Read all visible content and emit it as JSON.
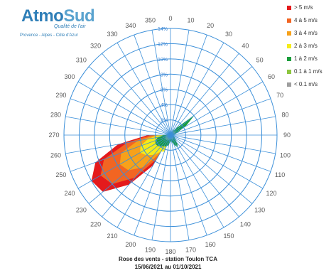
{
  "logo": {
    "brand_part1": "Atmo",
    "brand_part2": "Sud",
    "tagline": "Qualité de l'air",
    "region": "Provence - Alpes - Côte d'Azur"
  },
  "legend": [
    {
      "label": "> 5 m/s",
      "color": "#e41a1c"
    },
    {
      "label": "4 à 5 m/s",
      "color": "#f26522"
    },
    {
      "label": "3 à 4 m/s",
      "color": "#f7a11a"
    },
    {
      "label": "2 à 3 m/s",
      "color": "#f5ec1a"
    },
    {
      "label": "1 à 2 m/s",
      "color": "#1a9e3c"
    },
    {
      "label": "0.1 à 1 m/s",
      "color": "#8dc63f"
    },
    {
      "label": "< 0.1 m/s",
      "color": "#9e9e9e"
    }
  ],
  "caption": {
    "line1": "Rose des vents - station Toulon TCA",
    "line2": "15/06/2021 au 01/10/2021"
  },
  "chart_data": {
    "type": "polar-area",
    "rlim": [
      0,
      14
    ],
    "ring_values": [
      2,
      4,
      6,
      8,
      10,
      12,
      14
    ],
    "ring_labels": [
      "2%",
      "4%",
      "6%",
      "8%",
      "10%",
      "12%",
      "14%"
    ],
    "direction_labels": [
      "0",
      "10",
      "20",
      "30",
      "40",
      "50",
      "60",
      "70",
      "80",
      "90",
      "100",
      "110",
      "120",
      "130",
      "140",
      "150",
      "160",
      "170",
      "180",
      "190",
      "200",
      "210",
      "220",
      "230",
      "240",
      "250",
      "260",
      "270",
      "280",
      "290",
      "300",
      "310",
      "320",
      "330",
      "340",
      "350"
    ],
    "directions_deg": [
      0,
      10,
      20,
      30,
      40,
      50,
      60,
      70,
      80,
      90,
      100,
      110,
      120,
      130,
      140,
      150,
      160,
      170,
      180,
      190,
      200,
      210,
      220,
      230,
      240,
      250,
      260,
      270,
      280,
      290,
      300,
      310,
      320,
      330,
      340,
      350
    ],
    "series": [
      {
        "name": "> 5 m/s",
        "values": [
          0,
          0,
          0,
          0,
          0,
          0,
          0,
          0,
          0,
          0,
          0,
          0,
          0,
          0,
          0,
          0,
          0,
          0,
          0,
          0,
          0,
          4.6,
          8.5,
          11.6,
          12.0,
          10.5,
          7.0,
          3.0,
          0,
          0,
          0,
          0,
          0,
          0,
          0,
          0
        ]
      },
      {
        "name": "4 à 5 m/s",
        "values": [
          0,
          0,
          0,
          0,
          0,
          0,
          0,
          0,
          0,
          0,
          0,
          0,
          0,
          0,
          0,
          0,
          0,
          0,
          0,
          0,
          0,
          3.7,
          7.3,
          10.0,
          10.6,
          9.3,
          5.8,
          2.6,
          0,
          0,
          0,
          0,
          0,
          0,
          0,
          0
        ]
      },
      {
        "name": "3 à 4 m/s",
        "values": [
          0,
          0,
          0,
          0,
          0,
          0,
          0,
          0,
          0,
          0,
          0,
          0,
          0,
          0,
          0,
          0,
          0,
          0,
          0,
          0,
          0,
          2.8,
          5.5,
          7.2,
          7.7,
          6.9,
          4.4,
          2.0,
          0,
          0,
          0,
          0,
          0,
          0,
          0,
          0
        ]
      },
      {
        "name": "2 à 3 m/s",
        "values": [
          0,
          0,
          0,
          0,
          0,
          0,
          0,
          0,
          0,
          0,
          0,
          0,
          0,
          0,
          0,
          0,
          0,
          0,
          0,
          0,
          2.3,
          2.5,
          3.4,
          4.1,
          4.6,
          4.2,
          3.0,
          1.6,
          0,
          0,
          0,
          0,
          0,
          0,
          0,
          0
        ]
      },
      {
        "name": "1 à 2 m/s",
        "values": [
          0.3,
          0.3,
          0.4,
          0.6,
          1.2,
          4.2,
          2.3,
          0.9,
          0.6,
          0.4,
          0.4,
          0.5,
          0.6,
          0.8,
          1.4,
          1.9,
          1.3,
          0.9,
          0.8,
          1.3,
          1.6,
          1.7,
          2.0,
          2.2,
          2.3,
          2.1,
          1.7,
          0.9,
          0.4,
          0.3,
          0.3,
          0.3,
          0.3,
          0.3,
          0.3,
          0.3
        ]
      },
      {
        "name": "0.1 à 1 m/s",
        "values": [
          0.25,
          0.25,
          0.3,
          0.4,
          0.6,
          0.8,
          0.8,
          0.6,
          0.4,
          0.3,
          0.3,
          0.35,
          0.4,
          0.5,
          0.6,
          0.7,
          0.6,
          0.5,
          0.5,
          0.6,
          0.7,
          0.7,
          0.8,
          0.8,
          0.8,
          0.7,
          0.6,
          0.5,
          0.3,
          0.25,
          0.25,
          0.25,
          0.25,
          0.25,
          0.25,
          0.25
        ]
      },
      {
        "name": "< 0.1 m/s",
        "values": [
          0.15,
          0.15,
          0.15,
          0.15,
          0.15,
          0.15,
          0.15,
          0.15,
          0.15,
          0.15,
          0.15,
          0.15,
          0.15,
          0.15,
          0.15,
          0.15,
          0.15,
          0.15,
          0.15,
          0.15,
          0.15,
          0.15,
          0.15,
          0.15,
          0.15,
          0.15,
          0.15,
          0.15,
          0.15,
          0.15,
          0.15,
          0.15,
          0.15,
          0.15,
          0.15,
          0.15
        ]
      }
    ],
    "series_colors": [
      "#e41a1c",
      "#f26522",
      "#f7a11a",
      "#f5ec1a",
      "#1a9e3c",
      "#8dc63f",
      "#9e9e9e"
    ]
  }
}
